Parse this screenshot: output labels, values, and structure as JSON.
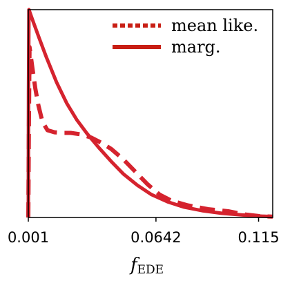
{
  "chart_data": {
    "type": "line",
    "xlabel_main": "f",
    "xlabel_sub": "EDE",
    "xlim": [
      0.001,
      0.122
    ],
    "ylim": [
      0,
      1.0
    ],
    "xticks": [
      0.001,
      0.0642,
      0.115
    ],
    "xtick_labels": [
      "0.001",
      "0.0642",
      "0.115"
    ],
    "legend_placement": "top-right",
    "colors": {
      "series": "#d5232e",
      "legend_swatch": "#c81e14"
    },
    "series": [
      {
        "name": "mean like.",
        "style": "dashed",
        "points": [
          [
            0.001,
            0.0
          ],
          [
            0.0013,
            0.45
          ],
          [
            0.0016,
            0.82
          ],
          [
            0.0022,
            0.78
          ],
          [
            0.003,
            0.72
          ],
          [
            0.0045,
            0.62
          ],
          [
            0.006,
            0.54
          ],
          [
            0.008,
            0.46
          ],
          [
            0.0105,
            0.42
          ],
          [
            0.014,
            0.41
          ],
          [
            0.018,
            0.407
          ],
          [
            0.022,
            0.407
          ],
          [
            0.027,
            0.4
          ],
          [
            0.032,
            0.385
          ],
          [
            0.037,
            0.36
          ],
          [
            0.042,
            0.33
          ],
          [
            0.048,
            0.28
          ],
          [
            0.054,
            0.22
          ],
          [
            0.06,
            0.16
          ],
          [
            0.066,
            0.11
          ],
          [
            0.072,
            0.08
          ],
          [
            0.08,
            0.058
          ],
          [
            0.09,
            0.04
          ],
          [
            0.1,
            0.03
          ],
          [
            0.108,
            0.015
          ],
          [
            0.115,
            0.007
          ],
          [
            0.122,
            0.004
          ]
        ]
      },
      {
        "name": "marg.",
        "style": "solid",
        "points": [
          [
            0.001,
            0.0
          ],
          [
            0.0011,
            0.6
          ],
          [
            0.0013,
            1.0
          ],
          [
            0.0035,
            0.94
          ],
          [
            0.0065,
            0.86
          ],
          [
            0.01,
            0.77
          ],
          [
            0.015,
            0.65
          ],
          [
            0.02,
            0.55
          ],
          [
            0.025,
            0.47
          ],
          [
            0.03,
            0.405
          ],
          [
            0.036,
            0.335
          ],
          [
            0.042,
            0.27
          ],
          [
            0.048,
            0.21
          ],
          [
            0.055,
            0.155
          ],
          [
            0.062,
            0.11
          ],
          [
            0.07,
            0.075
          ],
          [
            0.078,
            0.05
          ],
          [
            0.087,
            0.033
          ],
          [
            0.097,
            0.02
          ],
          [
            0.107,
            0.012
          ],
          [
            0.115,
            0.007
          ],
          [
            0.122,
            0.004
          ]
        ]
      }
    ]
  }
}
